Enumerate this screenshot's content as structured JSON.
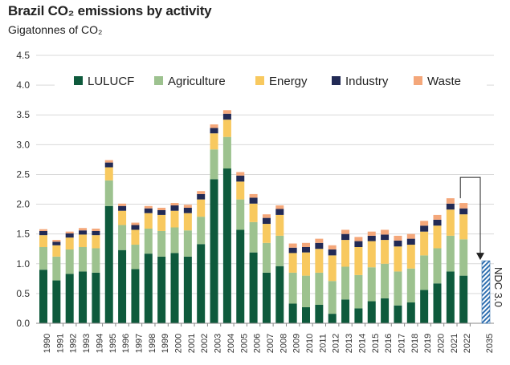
{
  "chart_data": {
    "type": "bar",
    "stacked": true,
    "title": "Brazil CO₂ emissions by activity",
    "subtitle": "Gigatonnes of CO₂",
    "ylim": [
      0,
      4.5
    ],
    "yticks": [
      "0.0",
      "0.5",
      "1.0",
      "1.5",
      "2.0",
      "2.5",
      "3.0",
      "3.5",
      "4.0",
      "4.5"
    ],
    "grid": true,
    "legend_position": "top",
    "categories": [
      "1990",
      "1991",
      "1992",
      "1993",
      "1994",
      "1995",
      "1996",
      "1997",
      "1998",
      "1999",
      "2000",
      "2001",
      "2002",
      "2003",
      "2004",
      "2005",
      "2006",
      "2007",
      "2008",
      "2009",
      "2010",
      "2011",
      "2012",
      "2013",
      "2014",
      "2015",
      "2016",
      "2017",
      "2018",
      "2019",
      "2020",
      "2021",
      "2022"
    ],
    "series": [
      {
        "name": "LULUCF",
        "color": "#0e5a3c",
        "values": [
          0.9,
          0.72,
          0.83,
          0.87,
          0.85,
          1.97,
          1.23,
          0.91,
          1.17,
          1.12,
          1.18,
          1.12,
          1.33,
          2.42,
          2.6,
          1.57,
          1.19,
          0.85,
          0.96,
          0.33,
          0.27,
          0.31,
          0.16,
          0.4,
          0.25,
          0.37,
          0.42,
          0.3,
          0.35,
          0.56,
          0.67,
          0.87,
          0.8
        ]
      },
      {
        "name": "Agriculture",
        "color": "#9dc28f",
        "values": [
          0.38,
          0.4,
          0.41,
          0.41,
          0.41,
          0.43,
          0.42,
          0.41,
          0.42,
          0.43,
          0.43,
          0.44,
          0.46,
          0.5,
          0.53,
          0.51,
          0.51,
          0.5,
          0.51,
          0.52,
          0.53,
          0.54,
          0.55,
          0.55,
          0.56,
          0.57,
          0.58,
          0.57,
          0.57,
          0.58,
          0.59,
          0.6,
          0.61
        ]
      },
      {
        "name": "Energy",
        "color": "#f8c95f",
        "values": [
          0.2,
          0.19,
          0.2,
          0.21,
          0.22,
          0.22,
          0.24,
          0.25,
          0.26,
          0.27,
          0.28,
          0.29,
          0.29,
          0.27,
          0.29,
          0.3,
          0.31,
          0.32,
          0.35,
          0.33,
          0.39,
          0.4,
          0.43,
          0.45,
          0.47,
          0.44,
          0.4,
          0.42,
          0.4,
          0.4,
          0.38,
          0.44,
          0.42
        ]
      },
      {
        "name": "Industry",
        "color": "#222a55",
        "values": [
          0.07,
          0.06,
          0.07,
          0.07,
          0.07,
          0.08,
          0.08,
          0.08,
          0.08,
          0.08,
          0.09,
          0.09,
          0.09,
          0.09,
          0.1,
          0.1,
          0.1,
          0.1,
          0.1,
          0.09,
          0.09,
          0.1,
          0.1,
          0.1,
          0.1,
          0.09,
          0.09,
          0.1,
          0.1,
          0.1,
          0.1,
          0.1,
          0.1
        ]
      },
      {
        "name": "Waste",
        "color": "#f4a77a",
        "values": [
          0.03,
          0.03,
          0.03,
          0.04,
          0.04,
          0.04,
          0.04,
          0.04,
          0.04,
          0.04,
          0.04,
          0.05,
          0.05,
          0.06,
          0.06,
          0.06,
          0.06,
          0.06,
          0.06,
          0.07,
          0.07,
          0.07,
          0.07,
          0.07,
          0.07,
          0.07,
          0.08,
          0.08,
          0.08,
          0.08,
          0.08,
          0.09,
          0.09
        ]
      }
    ],
    "target": {
      "category": "2035",
      "value": 1.05,
      "label": "NDC 3.0",
      "color": "#2f6fb0"
    }
  }
}
